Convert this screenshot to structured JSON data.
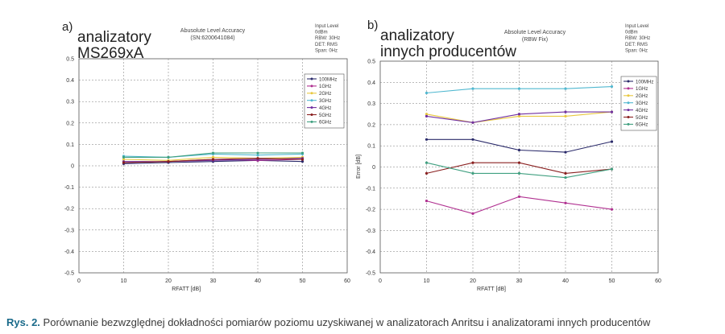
{
  "caption": {
    "label": "Rys. 2.",
    "text": "Porównanie bezwzględnej dokładności pomiarów poziomu uzyskiwanej w analizatorach Anritsu i analizatorami innych producentów"
  },
  "chart_data": [
    {
      "type": "line",
      "panel_letter": "a)",
      "panel_label": [
        "analizatory",
        "MS269xA"
      ],
      "title": "Abusolute Level Accuracy",
      "subtitle": "(SN:6200641084)",
      "info": [
        "Input Level",
        "0dBm",
        "RBW: 30Hz",
        "DET: RMS",
        "Span: 0Hz"
      ],
      "xlabel": "RFATT [dB]",
      "ylabel": "",
      "xlim": [
        0,
        60
      ],
      "ylim": [
        -0.5,
        0.5
      ],
      "xticks": [
        "0",
        "10",
        "20",
        "30",
        "40",
        "50",
        "60"
      ],
      "yticks": [
        "0.5",
        "0.4",
        "0.3",
        "0.2",
        "0.1",
        "0",
        "-0.1",
        "-0.2",
        "-0.3",
        "-0.4",
        "-0.5"
      ],
      "grid": true,
      "legend_position": "right",
      "x": [
        10,
        20,
        30,
        40,
        50
      ],
      "series": [
        {
          "name": "100MHz",
          "color": "#2a2a6a",
          "values": [
            0.01,
            0.015,
            0.02,
            0.025,
            0.02
          ]
        },
        {
          "name": "1GHz",
          "color": "#b03090",
          "values": [
            0.015,
            0.02,
            0.03,
            0.025,
            0.03
          ]
        },
        {
          "name": "2GHz",
          "color": "#e8c840",
          "values": [
            0.03,
            0.025,
            0.04,
            0.035,
            0.04
          ]
        },
        {
          "name": "3GHz",
          "color": "#50b8d0",
          "values": [
            0.045,
            0.04,
            0.055,
            0.05,
            0.055
          ]
        },
        {
          "name": "4GHz",
          "color": "#7030a0",
          "values": [
            0.02,
            0.02,
            0.025,
            0.03,
            0.035
          ]
        },
        {
          "name": "5GHz",
          "color": "#8a2020",
          "values": [
            0.015,
            0.02,
            0.03,
            0.035,
            0.03
          ]
        },
        {
          "name": "6GHz",
          "color": "#40a080",
          "values": [
            0.04,
            0.04,
            0.06,
            0.06,
            0.06
          ]
        }
      ]
    },
    {
      "type": "line",
      "panel_letter": "b)",
      "panel_label": [
        "analizatory",
        "innych producentów"
      ],
      "title": "Absolute Level Accuracy",
      "subtitle": "(RBW Fix)",
      "info": [
        "Input Level",
        "0dBm",
        "RBW: 30Hz",
        "DET: RMS",
        "Span: 0Hz"
      ],
      "xlabel": "RFATT [dB]",
      "ylabel": "Error [dB]",
      "xlim": [
        0,
        60
      ],
      "ylim": [
        -0.5,
        0.5
      ],
      "xticks": [
        "0",
        "10",
        "20",
        "30",
        "40",
        "50",
        "60"
      ],
      "yticks": [
        "0.5",
        "0.4",
        "0.3",
        "0.2",
        "0.1",
        "0",
        "-0.1",
        "-0.2",
        "-0.3",
        "-0.4",
        "-0.5"
      ],
      "grid": true,
      "legend_position": "right",
      "x": [
        10,
        20,
        30,
        40,
        50
      ],
      "series": [
        {
          "name": "100MHz",
          "color": "#2a2a6a",
          "values": [
            0.13,
            0.13,
            0.08,
            0.07,
            0.12
          ]
        },
        {
          "name": "1GHz",
          "color": "#b03090",
          "values": [
            -0.16,
            -0.22,
            -0.14,
            -0.17,
            -0.2
          ]
        },
        {
          "name": "2GHz",
          "color": "#e8c840",
          "values": [
            0.25,
            0.21,
            0.24,
            0.24,
            0.26
          ]
        },
        {
          "name": "3GHz",
          "color": "#50b8d0",
          "values": [
            0.35,
            0.37,
            0.37,
            0.37,
            0.38
          ]
        },
        {
          "name": "4GHz",
          "color": "#7030a0",
          "values": [
            0.24,
            0.21,
            0.25,
            0.26,
            0.26
          ]
        },
        {
          "name": "5GHz",
          "color": "#8a2020",
          "values": [
            -0.03,
            0.02,
            0.02,
            -0.03,
            -0.01
          ]
        },
        {
          "name": "6GHz",
          "color": "#40a080",
          "values": [
            0.02,
            -0.03,
            -0.03,
            -0.05,
            -0.01
          ]
        }
      ]
    }
  ]
}
